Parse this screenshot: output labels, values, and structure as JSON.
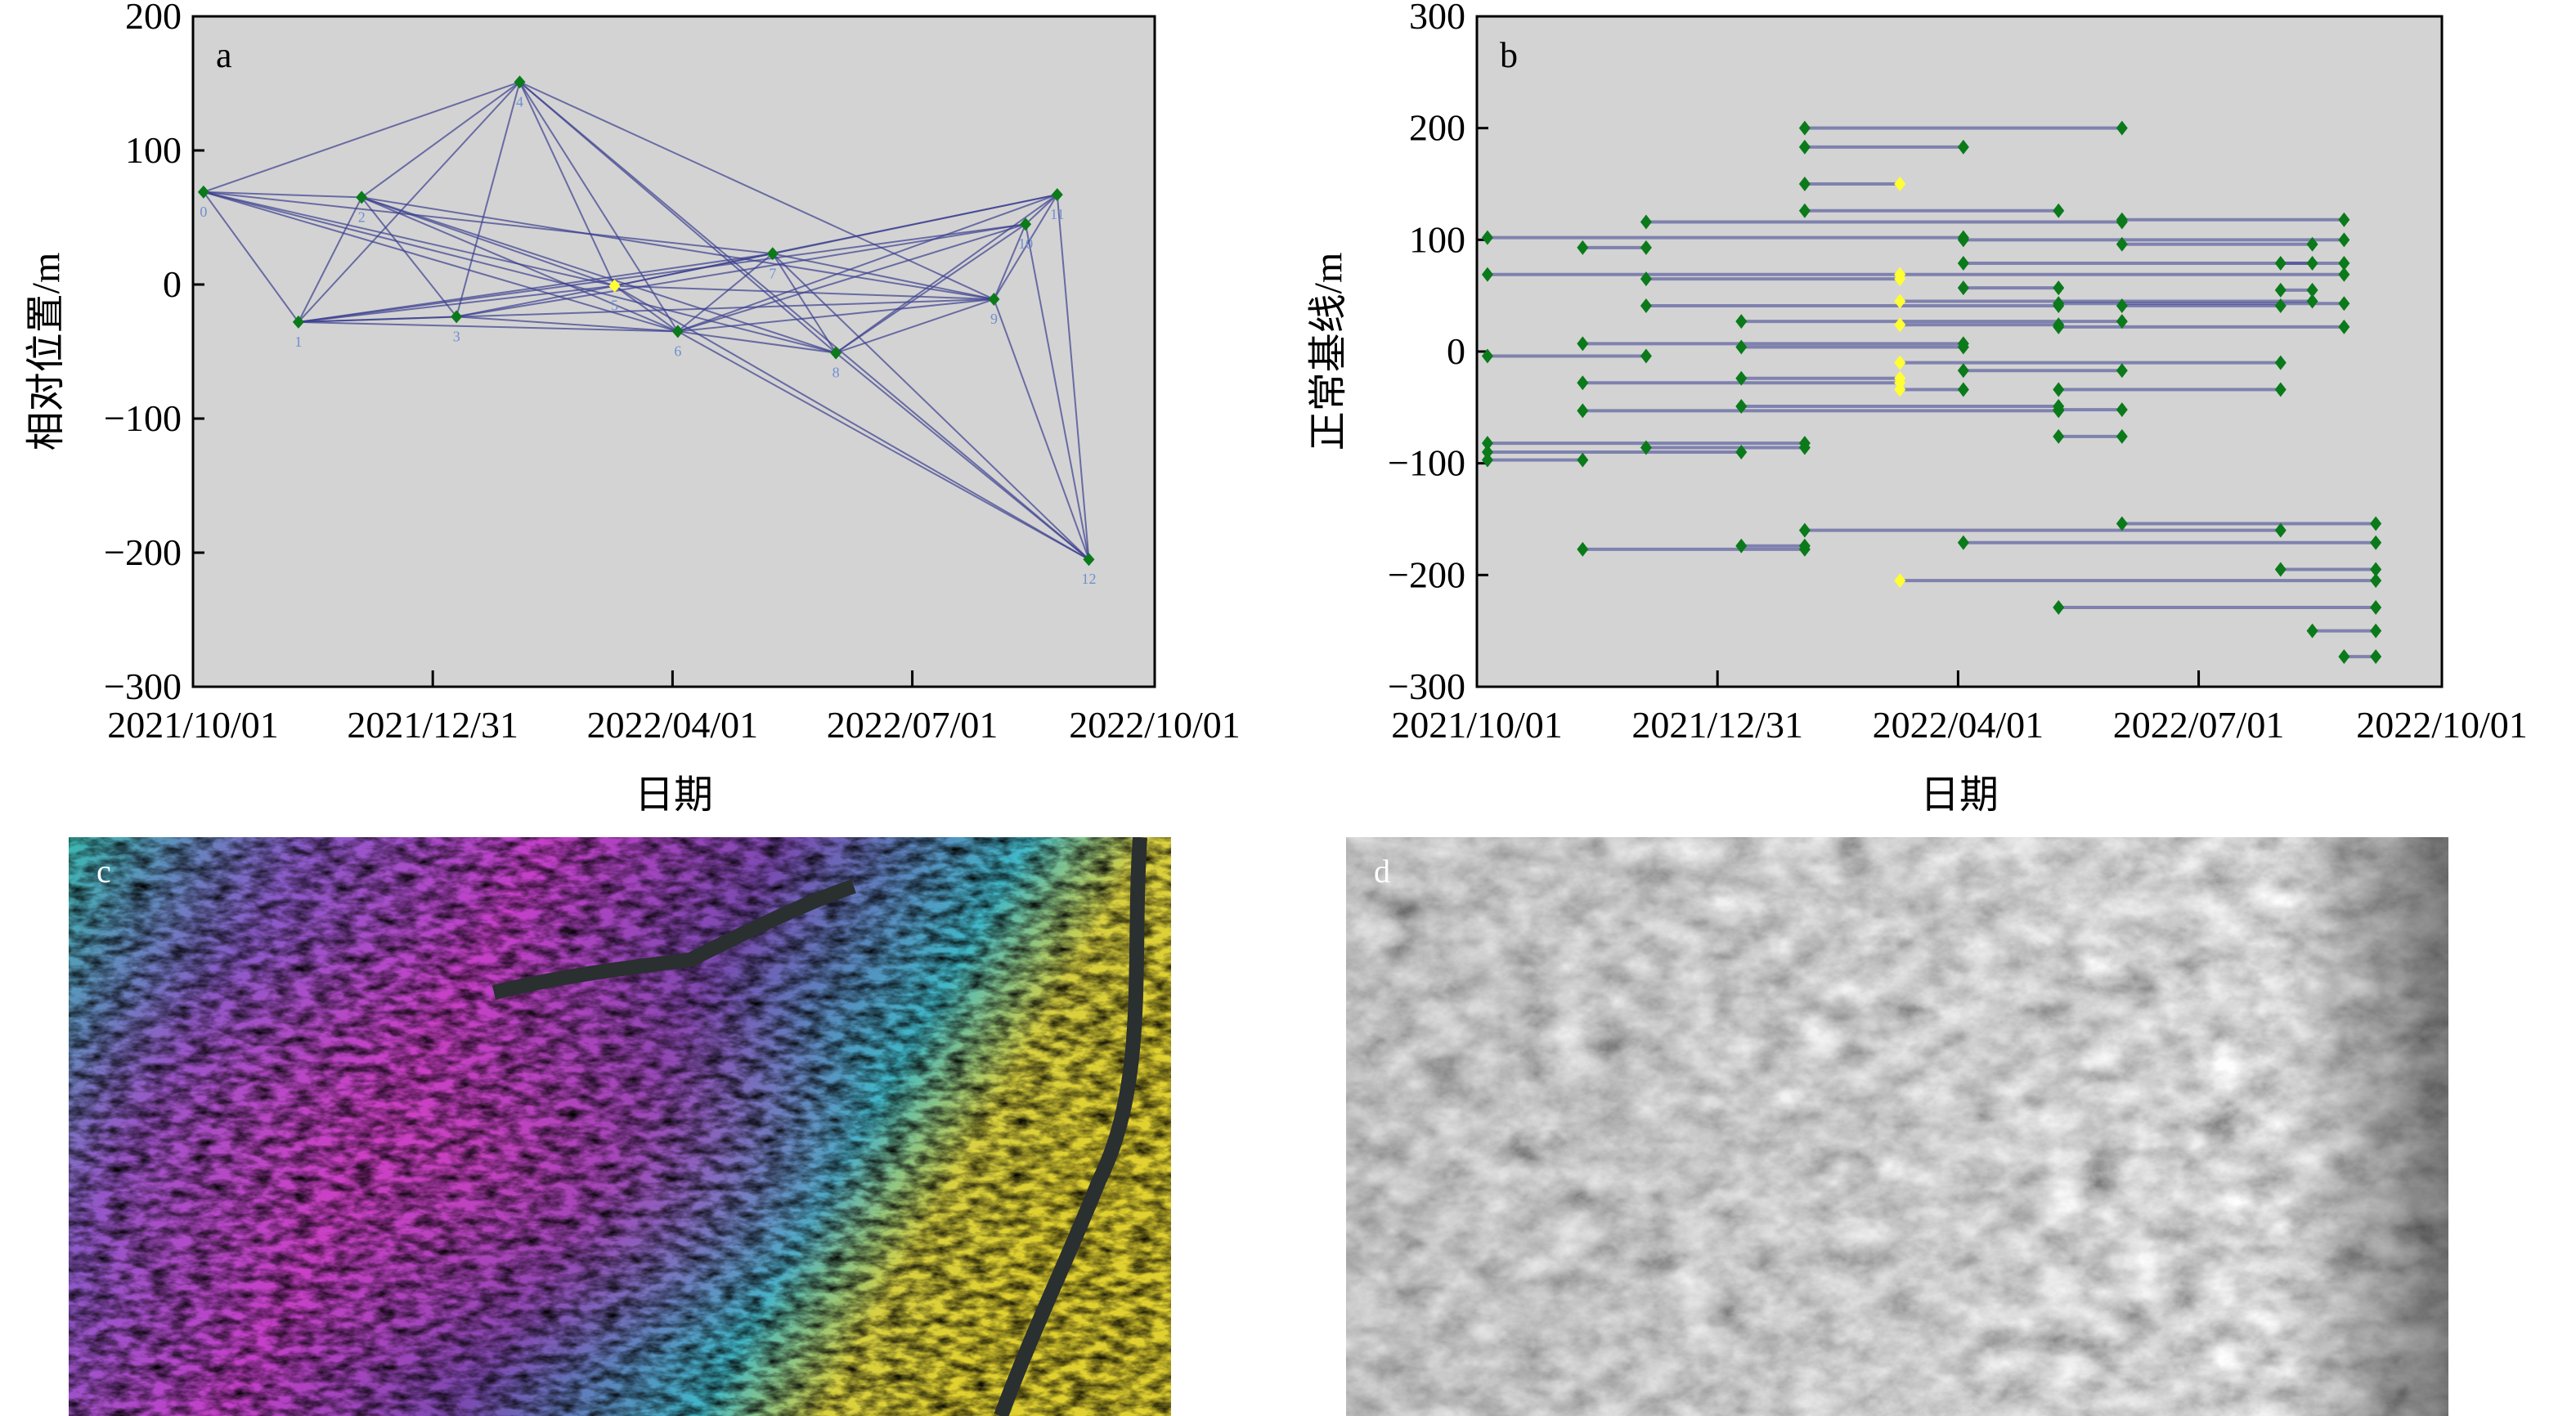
{
  "chart_data": [
    {
      "type": "scatter",
      "panel_label": "a",
      "title": "",
      "xlabel": "日期",
      "ylabel": "相对位置/m",
      "xlim": [
        "2021-10-01",
        "2022-10-01"
      ],
      "ylim": [
        -300,
        200
      ],
      "xticks": [
        "2021/10/01",
        "2021/12/31",
        "2022/04/01",
        "2022/07/01",
        "2022/10/01"
      ],
      "xtick_dates": [
        "2021-10-01",
        "2021-12-31",
        "2022-04-01",
        "2022-07-01",
        "2022-10-01"
      ],
      "yticks": [
        200,
        100,
        0,
        -100,
        -200,
        -300
      ],
      "ytick_labels": [
        "200",
        "100",
        "0",
        "−100",
        "−200",
        "−300"
      ],
      "master_index": 5,
      "points": [
        {
          "label": "0",
          "date": "2021-10-05",
          "y": 69
        },
        {
          "label": "1",
          "date": "2021-11-10",
          "y": -28
        },
        {
          "label": "2",
          "date": "2021-12-04",
          "y": 65
        },
        {
          "label": "3",
          "date": "2022-01-09",
          "y": -24
        },
        {
          "label": "4",
          "date": "2022-02-02",
          "y": 151
        },
        {
          "label": "5",
          "date": "2022-03-10",
          "y": -1
        },
        {
          "label": "6",
          "date": "2022-04-03",
          "y": -35
        },
        {
          "label": "7",
          "date": "2022-05-09",
          "y": 23
        },
        {
          "label": "8",
          "date": "2022-06-02",
          "y": -51
        },
        {
          "label": "9",
          "date": "2022-08-01",
          "y": -11
        },
        {
          "label": "10",
          "date": "2022-08-13",
          "y": 45
        },
        {
          "label": "11",
          "date": "2022-08-25",
          "y": 67
        },
        {
          "label": "12",
          "date": "2022-09-06",
          "y": -205
        }
      ],
      "edges": [
        [
          0,
          1
        ],
        [
          0,
          2
        ],
        [
          0,
          4
        ],
        [
          0,
          5
        ],
        [
          0,
          6
        ],
        [
          0,
          7
        ],
        [
          0,
          8
        ],
        [
          1,
          2
        ],
        [
          1,
          3
        ],
        [
          1,
          4
        ],
        [
          1,
          5
        ],
        [
          1,
          6
        ],
        [
          1,
          7
        ],
        [
          1,
          9
        ],
        [
          1,
          10
        ],
        [
          2,
          3
        ],
        [
          2,
          4
        ],
        [
          2,
          5
        ],
        [
          2,
          6
        ],
        [
          2,
          8
        ],
        [
          2,
          9
        ],
        [
          3,
          4
        ],
        [
          3,
          5
        ],
        [
          3,
          6
        ],
        [
          3,
          10
        ],
        [
          4,
          5
        ],
        [
          4,
          6
        ],
        [
          4,
          8
        ],
        [
          4,
          9
        ],
        [
          4,
          12
        ],
        [
          5,
          6
        ],
        [
          5,
          7
        ],
        [
          5,
          9
        ],
        [
          5,
          11
        ],
        [
          5,
          12
        ],
        [
          6,
          7
        ],
        [
          6,
          8
        ],
        [
          6,
          9
        ],
        [
          6,
          10
        ],
        [
          6,
          11
        ],
        [
          6,
          12
        ],
        [
          7,
          8
        ],
        [
          7,
          9
        ],
        [
          7,
          11
        ],
        [
          7,
          12
        ],
        [
          8,
          9
        ],
        [
          8,
          10
        ],
        [
          8,
          11
        ],
        [
          8,
          12
        ],
        [
          9,
          10
        ],
        [
          9,
          11
        ],
        [
          9,
          12
        ],
        [
          10,
          11
        ],
        [
          10,
          12
        ],
        [
          11,
          12
        ]
      ]
    },
    {
      "type": "line",
      "panel_label": "b",
      "title": "",
      "xlabel": "日期",
      "ylabel": "正常基线/m",
      "xlim": [
        "2021-10-01",
        "2022-10-01"
      ],
      "ylim": [
        -300,
        300
      ],
      "xticks": [
        "2021/10/01",
        "2021/12/31",
        "2022/04/01",
        "2022/07/01",
        "2022/10/01"
      ],
      "xtick_dates": [
        "2021-10-01",
        "2021-12-31",
        "2022-04-01",
        "2022-07-01",
        "2022-10-01"
      ],
      "yticks": [
        300,
        200,
        100,
        0,
        -100,
        -200,
        -300
      ],
      "ytick_labels": [
        "300",
        "200",
        "100",
        "0",
        "−100",
        "−200",
        "−300"
      ],
      "dates": [
        "2021-10-05",
        "2021-11-10",
        "2021-12-04",
        "2022-01-09",
        "2022-02-02",
        "2022-03-10",
        "2022-04-03",
        "2022-05-09",
        "2022-06-02",
        "2022-08-01",
        "2022-08-13",
        "2022-08-25",
        "2022-09-06"
      ],
      "master_date_index": 5,
      "pairs": [
        {
          "from": 4,
          "to": 8,
          "y": 200
        },
        {
          "from": 4,
          "to": 6,
          "y": 183
        },
        {
          "from": 4,
          "to": 5,
          "y": 150
        },
        {
          "from": 4,
          "to": 7,
          "y": 126
        },
        {
          "from": 2,
          "to": 8,
          "y": 116
        },
        {
          "from": 8,
          "to": 11,
          "y": 118
        },
        {
          "from": 0,
          "to": 6,
          "y": 102
        },
        {
          "from": 6,
          "to": 11,
          "y": 100
        },
        {
          "from": 1,
          "to": 2,
          "y": 93
        },
        {
          "from": 8,
          "to": 10,
          "y": 96
        },
        {
          "from": 6,
          "to": 11,
          "y": 79
        },
        {
          "from": 9,
          "to": 10,
          "y": 79
        },
        {
          "from": 0,
          "to": 5,
          "y": 69
        },
        {
          "from": 5,
          "to": 11,
          "y": 69
        },
        {
          "from": 2,
          "to": 5,
          "y": 65
        },
        {
          "from": 6,
          "to": 7,
          "y": 57
        },
        {
          "from": 9,
          "to": 10,
          "y": 55
        },
        {
          "from": 5,
          "to": 10,
          "y": 45
        },
        {
          "from": 7,
          "to": 11,
          "y": 43
        },
        {
          "from": 2,
          "to": 7,
          "y": 41
        },
        {
          "from": 8,
          "to": 9,
          "y": 41
        },
        {
          "from": 3,
          "to": 8,
          "y": 27
        },
        {
          "from": 5,
          "to": 7,
          "y": 24
        },
        {
          "from": 7,
          "to": 11,
          "y": 22
        },
        {
          "from": 1,
          "to": 6,
          "y": 7
        },
        {
          "from": 3,
          "to": 6,
          "y": 4
        },
        {
          "from": 0,
          "to": 2,
          "y": -4
        },
        {
          "from": 5,
          "to": 9,
          "y": -10
        },
        {
          "from": 6,
          "to": 8,
          "y": -17
        },
        {
          "from": 1,
          "to": 5,
          "y": -28
        },
        {
          "from": 3,
          "to": 5,
          "y": -24
        },
        {
          "from": 5,
          "to": 6,
          "y": -34
        },
        {
          "from": 7,
          "to": 9,
          "y": -34
        },
        {
          "from": 3,
          "to": 7,
          "y": -49
        },
        {
          "from": 1,
          "to": 7,
          "y": -53
        },
        {
          "from": 7,
          "to": 8,
          "y": -52
        },
        {
          "from": 7,
          "to": 8,
          "y": -76
        },
        {
          "from": 0,
          "to": 4,
          "y": -82
        },
        {
          "from": 2,
          "to": 4,
          "y": -86
        },
        {
          "from": 0,
          "to": 3,
          "y": -90
        },
        {
          "from": 0,
          "to": 1,
          "y": -97
        },
        {
          "from": 4,
          "to": 9,
          "y": -160
        },
        {
          "from": 8,
          "to": 12,
          "y": -154
        },
        {
          "from": 6,
          "to": 12,
          "y": -171
        },
        {
          "from": 3,
          "to": 4,
          "y": -174
        },
        {
          "from": 1,
          "to": 4,
          "y": -177
        },
        {
          "from": 9,
          "to": 12,
          "y": -195
        },
        {
          "from": 5,
          "to": 12,
          "y": -205
        },
        {
          "from": 7,
          "to": 12,
          "y": -229
        },
        {
          "from": 10,
          "to": 12,
          "y": -250
        },
        {
          "from": 11,
          "to": 12,
          "y": -273
        }
      ]
    }
  ],
  "panels": {
    "c_label": "c",
    "d_label": "d"
  },
  "colors": {
    "plot_bg": "#d3d3d3",
    "edge": "#3a3f8f",
    "point": "#0b7a1a",
    "master": "#ffff33",
    "point_label": "#6f8fd0"
  }
}
